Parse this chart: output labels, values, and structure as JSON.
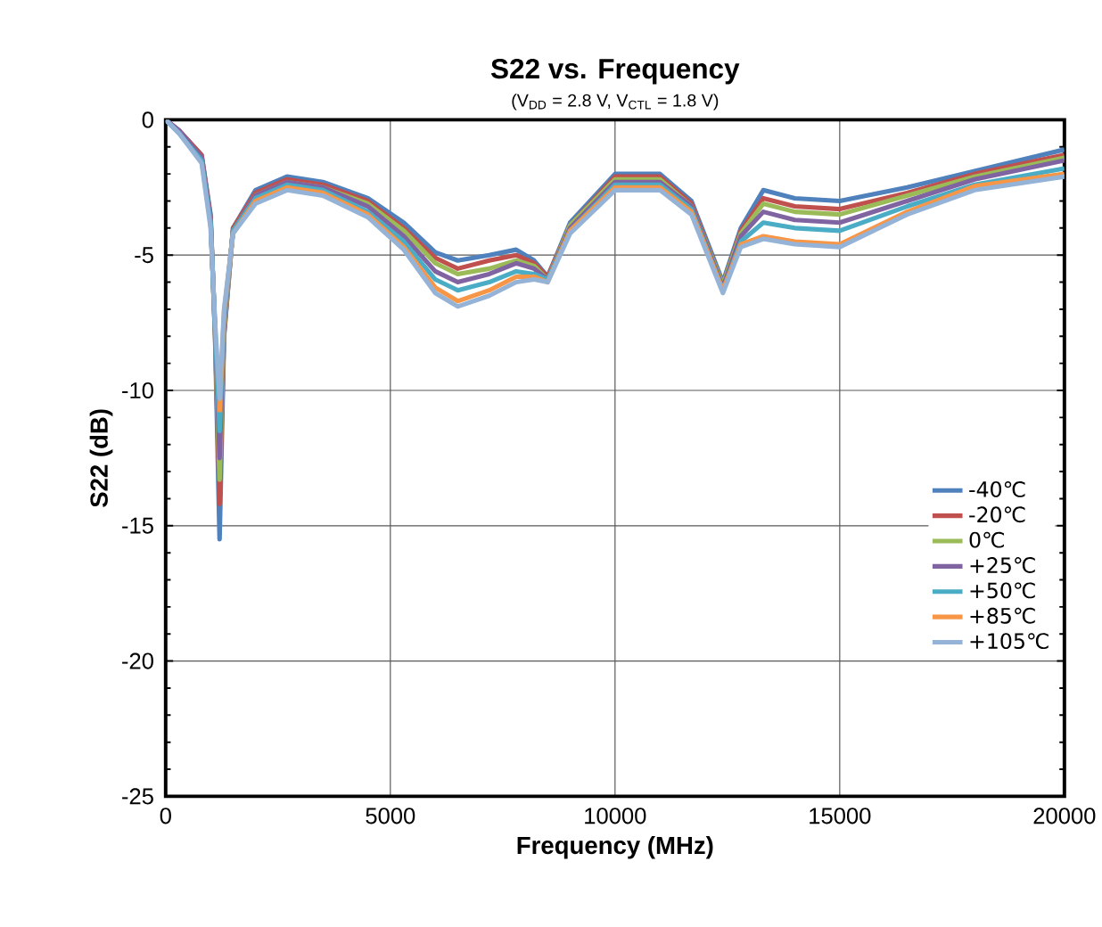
{
  "chart_data": {
    "type": "line",
    "title": "S22 vs. Frequency",
    "subtitle": "(V$_{DD}$ = 2.8 V, V$_{CTL}$ = 1.8 V)",
    "xlabel": "Frequency (MHz)",
    "ylabel": "S22 (dB)",
    "x": [
      0,
      300,
      800,
      1000,
      1100,
      1200,
      1300,
      1500,
      2000,
      2700,
      3500,
      4500,
      5300,
      6000,
      6500,
      7200,
      7800,
      8200,
      8500,
      9000,
      10000,
      11000,
      11700,
      12400,
      12800,
      13300,
      14000,
      15000,
      16500,
      18000,
      20000
    ],
    "xlim": [
      0,
      20000
    ],
    "xticks": [
      0,
      5000,
      10000,
      15000,
      20000
    ],
    "ylim": [
      -25,
      0
    ],
    "yticks": [
      -25,
      -20,
      -15,
      -10,
      -5,
      0
    ],
    "grid": true,
    "legend": "right",
    "marker": "none",
    "line_style": "solid",
    "series": [
      {
        "name": "-40℃",
        "color": "#4f81bd",
        "values": [
          0,
          -0.4,
          -1.3,
          -3.5,
          -8,
          -15.5,
          -8,
          -4,
          -2.6,
          -2.1,
          -2.3,
          -2.9,
          -3.8,
          -4.9,
          -5.2,
          -5.0,
          -4.8,
          -5.2,
          -5.8,
          -3.8,
          -2.0,
          -2.0,
          -3.0,
          -6.0,
          -4.0,
          -2.6,
          -2.9,
          -3.0,
          -2.5,
          -1.9,
          -1.1
        ]
      },
      {
        "name": "-20℃",
        "color": "#c0504d",
        "values": [
          0,
          -0.4,
          -1.3,
          -3.6,
          -7.9,
          -14.2,
          -7.9,
          -4.0,
          -2.7,
          -2.2,
          -2.4,
          -3.0,
          -4.0,
          -5.1,
          -5.5,
          -5.2,
          -5.0,
          -5.3,
          -5.8,
          -3.9,
          -2.1,
          -2.1,
          -3.1,
          -6.1,
          -4.1,
          -2.9,
          -3.2,
          -3.3,
          -2.7,
          -2.0,
          -1.3
        ]
      },
      {
        "name": "0℃",
        "color": "#9bbb59",
        "values": [
          null,
          null,
          null,
          -3.7,
          -7.9,
          -13.3,
          -7.7,
          -4.1,
          -2.8,
          -2.3,
          -2.5,
          -3.1,
          -4.1,
          -5.3,
          -5.7,
          -5.5,
          -5.2,
          -5.4,
          -5.9,
          -3.9,
          -2.2,
          -2.2,
          -3.2,
          -6.1,
          -4.2,
          -3.1,
          -3.4,
          -3.5,
          -2.8,
          -2.1,
          -1.4
        ]
      },
      {
        "name": "+25℃",
        "color": "#8064a2",
        "values": [
          0,
          -0.4,
          -1.4,
          -3.7,
          -7.8,
          -12.5,
          -7.5,
          -4.1,
          -2.8,
          -2.3,
          -2.5,
          -3.2,
          -4.3,
          -5.6,
          -6.0,
          -5.7,
          -5.3,
          -5.5,
          -5.9,
          -4.0,
          -2.3,
          -2.3,
          -3.2,
          -6.2,
          -4.3,
          -3.4,
          -3.7,
          -3.8,
          -3.0,
          -2.2,
          -1.5
        ]
      },
      {
        "name": "+50℃",
        "color": "#4bacc6",
        "values": [
          0,
          -0.5,
          -1.5,
          -3.8,
          -7.7,
          -11.5,
          -7.3,
          -4.1,
          -2.9,
          -2.4,
          -2.6,
          -3.4,
          -4.5,
          -5.9,
          -6.3,
          -6.0,
          -5.6,
          -5.7,
          -5.9,
          -4.1,
          -2.4,
          -2.4,
          -3.3,
          -6.3,
          -4.5,
          -3.8,
          -4.0,
          -4.1,
          -3.2,
          -2.4,
          -1.8
        ]
      },
      {
        "name": "+85℃",
        "color": "#f79646",
        "values": [
          null,
          null,
          null,
          null,
          null,
          -10.8,
          -7.1,
          -4.2,
          -3.0,
          -2.5,
          -2.7,
          -3.5,
          -4.7,
          -6.2,
          -6.7,
          -6.3,
          -5.8,
          -5.8,
          -6.0,
          -4.1,
          -2.5,
          -2.5,
          -3.4,
          -6.3,
          -4.6,
          -4.3,
          -4.5,
          -4.6,
          -3.4,
          -2.45,
          -2.0
        ]
      },
      {
        "name": "+105℃",
        "color": "#95b3d7",
        "values": [
          0,
          -0.5,
          -1.6,
          -4,
          -7.5,
          -10.3,
          -7,
          -4.2,
          -3.1,
          -2.6,
          -2.8,
          -3.6,
          -4.8,
          -6.4,
          -6.9,
          -6.5,
          -6.0,
          -5.9,
          -6.0,
          -4.2,
          -2.6,
          -2.6,
          -3.5,
          -6.4,
          -4.7,
          -4.4,
          -4.6,
          -4.7,
          -3.5,
          -2.6,
          -2.1
        ]
      }
    ]
  }
}
